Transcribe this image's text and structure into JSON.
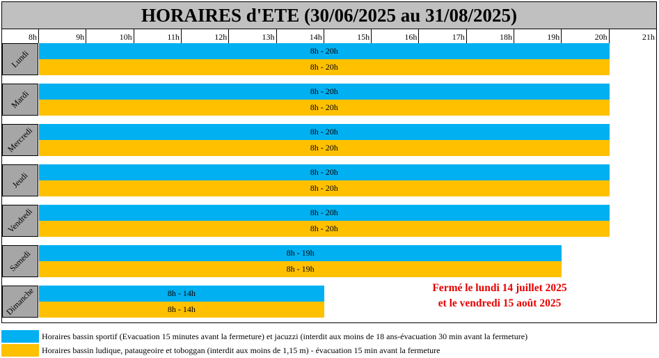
{
  "title": "HORAIRES d'ETE (30/06/2025 au 31/08/2025)",
  "hours": [
    "8h",
    "9h",
    "10h",
    "11h",
    "12h",
    "13h",
    "14h",
    "15h",
    "16h",
    "17h",
    "18h",
    "19h",
    "20h",
    "21h"
  ],
  "days": [
    {
      "name": "Lundi",
      "sport": "8h - 20h",
      "ludique": "8h - 20h",
      "sport_end": 20,
      "ludique_end": 20
    },
    {
      "name": "Mardi",
      "sport": "8h - 20h",
      "ludique": "8h - 20h",
      "sport_end": 20,
      "ludique_end": 20
    },
    {
      "name": "Mercredi",
      "sport": "8h - 20h",
      "ludique": "8h - 20h",
      "sport_end": 20,
      "ludique_end": 20
    },
    {
      "name": "Jeudi",
      "sport": "8h - 20h",
      "ludique": "8h - 20h",
      "sport_end": 20,
      "ludique_end": 20
    },
    {
      "name": "Vendredi",
      "sport": "8h - 20h",
      "ludique": "8h - 20h",
      "sport_end": 20,
      "ludique_end": 20
    },
    {
      "name": "Samedi",
      "sport": "8h - 19h",
      "ludique": "8h - 19h",
      "sport_end": 19,
      "ludique_end": 19
    },
    {
      "name": "Dimanche",
      "sport": "8h - 14h",
      "ludique": "8h - 14h",
      "sport_end": 14,
      "ludique_end": 14
    }
  ],
  "closure": {
    "line1": "Fermé le lundi 14 juillet 2025",
    "line2": "et le vendredi 15 août 2025"
  },
  "legend": {
    "sport": "Horaires bassin sportif (Evacuation 15 minutes avant la fermeture) et jacuzzi (interdit aux moins de 18 ans-évacuation 30 min avant la fermeture)",
    "ludique": "Horaires bassin ludique, pataugeoire et toboggan (interdit aux moins de 1,15 m) - évacuation 15 min avant la fermeture"
  },
  "colors": {
    "sport": "#00b0f0",
    "ludique": "#ffc000",
    "closure_text": "#e60000",
    "header_bg": "#c0c0c0",
    "day_bg": "#a6a6a6"
  }
}
